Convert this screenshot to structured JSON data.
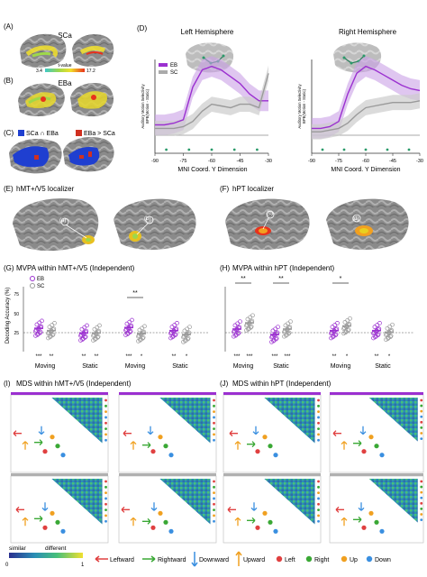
{
  "colors": {
    "eb": "#9b30d0",
    "sc": "#a0a0a0",
    "heat_low": "#3ec9c9",
    "heat_high": "#e8321c",
    "overlap_blue": "#1f3fd0",
    "diff_red": "#d03020",
    "mds_right_green": "#3aa835",
    "mds_up_orange": "#f0a020",
    "mds_down_blue": "#3a8fe0",
    "mds_left_red": "#e04040"
  },
  "panelA": {
    "label": "(A)",
    "title": "SCa",
    "colorbar_title": "t-value",
    "cbar_min": "3.4",
    "cbar_max": "17.2"
  },
  "panelB": {
    "label": "(B)",
    "title": "EBa"
  },
  "panelC": {
    "label": "(C)",
    "legend_blue": "SCa ∩ EBa",
    "legend_red": "EBa > SCa"
  },
  "panelD": {
    "label": "(D)",
    "left_title": "Left Hemisphere",
    "right_title": "Right Hemisphere",
    "legend_eb": "EB",
    "legend_sc": "SC",
    "ylabel_line1": "Auditory Motion Selectivity",
    "ylabel_line2": "BPE(Motion - Static)",
    "xlabel": "MNI Coord. Y Dimension",
    "left_ticks": [
      "-90",
      "-75",
      "-60",
      "-45",
      "-30"
    ],
    "right_ticks": [
      "-90",
      "-75",
      "-60",
      "-45",
      "-30"
    ]
  },
  "panelE": {
    "label": "(E)",
    "title": "hMT+/V5 localizer",
    "marker_a": "(a)",
    "marker_b": "(b)"
  },
  "panelF": {
    "label": "(F)",
    "title": "hPT localizer",
    "marker_c": "(c)",
    "marker_d": "(d)"
  },
  "panelG": {
    "label": "(G)",
    "title": "MVPA within hMT+/V5 (Independent)",
    "ylabel": "Decoding Accuracy (%)",
    "yticks": [
      "25",
      "50",
      "75"
    ],
    "legend_eb": "EB",
    "legend_sc": "SC",
    "groups": [
      "Moving",
      "Static",
      "Moving",
      "Static"
    ],
    "stars": [
      "***",
      "**",
      "**",
      "**",
      "***",
      "*",
      "**",
      "*"
    ],
    "sig_top": "**"
  },
  "panelH": {
    "label": "(H)",
    "title": "MVPA within hPT (Independent)",
    "groups": [
      "Moving",
      "Static",
      "Moving",
      "Static"
    ],
    "stars": [
      "***",
      "***",
      "***",
      "***",
      "**",
      "*",
      "**",
      "*"
    ],
    "sig_top": [
      "**",
      "**",
      "*"
    ]
  },
  "panelI": {
    "label": "(I)",
    "title": "MDS within hMT+/V5 (Independent)"
  },
  "panelJ": {
    "label": "(J)",
    "title": "MDS within hPT (Independent)"
  },
  "legend": {
    "similar": "similar",
    "different": "different",
    "cbar_min": "0",
    "cbar_max": "1",
    "leftward": "Leftward",
    "rightward": "Rightward",
    "downward": "Downward",
    "upward": "Upward",
    "left": "Left",
    "right": "Right",
    "up": "Up",
    "down": "Down"
  },
  "chart_data": [
    {
      "type": "line",
      "title": "Left Hemisphere",
      "xlabel": "MNI Coord. Y Dimension",
      "ylabel": "Auditory Motion Selectivity BPE(Motion - Static)",
      "x": [
        -90,
        -85,
        -80,
        -75,
        -70,
        -65,
        -60,
        -55,
        -50,
        -45,
        -40,
        -35,
        -30
      ],
      "series": [
        {
          "name": "EB",
          "values": [
            0.3,
            0.3,
            0.35,
            0.45,
            1.4,
            1.9,
            2.0,
            1.9,
            1.7,
            1.5,
            1.2,
            1.0,
            1.0
          ]
        },
        {
          "name": "SC",
          "values": [
            0.2,
            0.2,
            0.2,
            0.25,
            0.4,
            0.7,
            0.9,
            0.85,
            0.8,
            0.9,
            0.9,
            0.8,
            1.8
          ]
        }
      ]
    },
    {
      "type": "line",
      "title": "Right Hemisphere",
      "xlabel": "MNI Coord. Y Dimension",
      "ylabel": "Auditory Motion Selectivity BPE(Motion - Static)",
      "x": [
        -90,
        -85,
        -80,
        -75,
        -70,
        -65,
        -60,
        -55,
        -50,
        -45,
        -40,
        -35,
        -30
      ],
      "series": [
        {
          "name": "EB",
          "values": [
            0.2,
            0.2,
            0.25,
            0.4,
            1.2,
            1.8,
            2.0,
            1.9,
            1.75,
            1.6,
            1.45,
            1.35,
            1.3
          ]
        },
        {
          "name": "SC",
          "values": [
            0.1,
            0.1,
            0.15,
            0.2,
            0.35,
            0.6,
            0.8,
            0.85,
            0.9,
            0.95,
            0.95,
            0.95,
            1.0
          ]
        }
      ]
    },
    {
      "type": "scatter",
      "title": "MVPA within hMT+/V5 (Independent)",
      "ylabel": "Decoding Accuracy (%)",
      "categories": [
        "Moving",
        "Static",
        "Moving",
        "Static"
      ],
      "series": [
        {
          "name": "EB",
          "values": [
            33,
            27,
            34,
            30
          ]
        },
        {
          "name": "SC",
          "values": [
            30,
            27,
            26,
            25
          ]
        }
      ]
    },
    {
      "type": "scatter",
      "title": "MVPA within hPT (Independent)",
      "ylabel": "Decoding Accuracy (%)",
      "categories": [
        "Moving",
        "Static",
        "Moving",
        "Static"
      ],
      "series": [
        {
          "name": "EB",
          "values": [
            32,
            25,
            30,
            30
          ]
        },
        {
          "name": "SC",
          "values": [
            40,
            32,
            36,
            28
          ]
        }
      ]
    }
  ]
}
